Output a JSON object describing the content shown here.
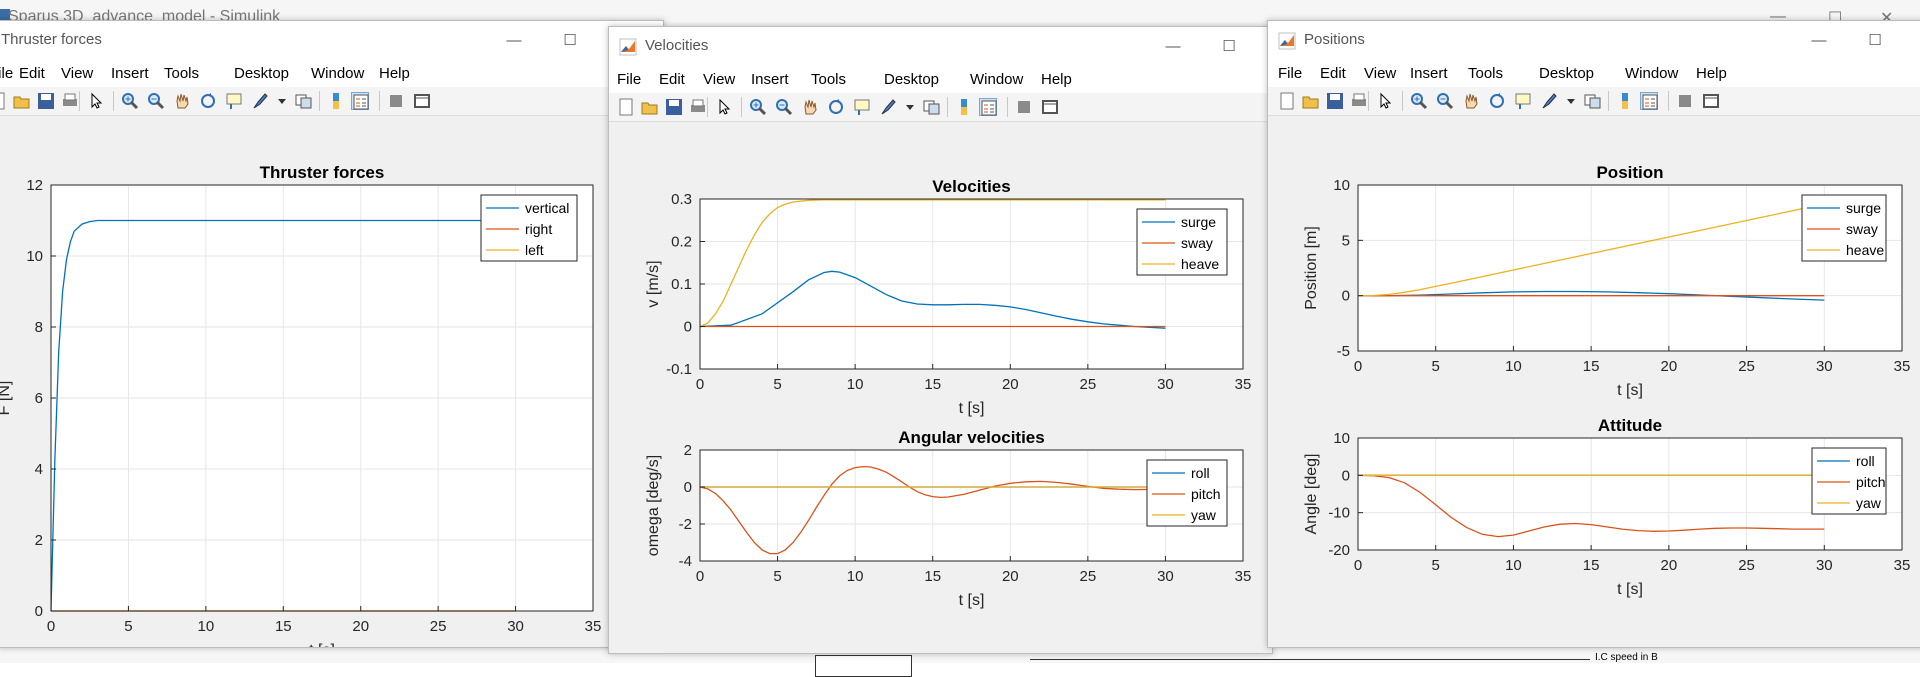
{
  "background": {
    "title": "Sparus 3D_advance_model - Simulink",
    "bottom_label": "I.C speed in B"
  },
  "menu_items": [
    "File",
    "Edit",
    "View",
    "Insert",
    "Tools",
    "Desktop",
    "Window",
    "Help"
  ],
  "toolbar_icons": [
    "new-figure-icon",
    "open-icon",
    "save-icon",
    "print-icon",
    "pointer-icon",
    "zoom-in-icon",
    "zoom-out-icon",
    "pan-icon",
    "rotate-icon",
    "data-cursor-icon",
    "brush-icon",
    "dropdown-arrow-icon",
    "link-icon",
    "colorbar-icon",
    "legend-icon",
    "hide-plot-tools-icon",
    "show-plot-tools-icon"
  ],
  "windows": {
    "thruster": {
      "title": "Thruster forces"
    },
    "velocities": {
      "title": "Velocities"
    },
    "positions": {
      "title": "Positions"
    }
  },
  "colors": {
    "blue": "#0072BD",
    "orange": "#D95319",
    "yellow": "#EDB120",
    "grid": "#e6e6e6",
    "axes": "#262626"
  },
  "chart_data": [
    {
      "id": "thruster_forces",
      "type": "line",
      "title": "Thruster forces",
      "xlabel": "t [s]",
      "ylabel": "F [N]",
      "xlim": [
        0,
        35
      ],
      "ylim": [
        0,
        12
      ],
      "xticks": [
        0,
        5,
        10,
        15,
        20,
        25,
        30,
        35
      ],
      "yticks": [
        0,
        2,
        4,
        6,
        8,
        10,
        12
      ],
      "grid": true,
      "legend_position": "top-right",
      "series": [
        {
          "name": "vertical",
          "color": "blue",
          "x": [
            0,
            0.25,
            0.5,
            0.75,
            1,
            1.25,
            1.5,
            2,
            2.5,
            3,
            4,
            5,
            10,
            30
          ],
          "y": [
            0,
            4.3,
            7.3,
            9.0,
            9.9,
            10.4,
            10.7,
            10.9,
            10.97,
            11.0,
            11.0,
            11.0,
            11.0,
            11.0
          ]
        },
        {
          "name": "right",
          "color": "orange",
          "x": [
            0,
            30
          ],
          "y": [
            0,
            0
          ]
        },
        {
          "name": "left",
          "color": "yellow",
          "x": [
            0,
            30
          ],
          "y": [
            0,
            0
          ]
        }
      ]
    },
    {
      "id": "velocities",
      "type": "line",
      "title": "Velocities",
      "xlabel": "t [s]",
      "ylabel": "v [m/s]",
      "xlim": [
        0,
        35
      ],
      "ylim": [
        -0.1,
        0.3
      ],
      "xticks": [
        0,
        5,
        10,
        15,
        20,
        25,
        30,
        35
      ],
      "yticks": [
        -0.1,
        0,
        0.1,
        0.2,
        0.3
      ],
      "ytick_labels": [
        "-0.1",
        "0",
        "0.1",
        "0.2",
        "0.3"
      ],
      "grid": true,
      "legend_position": "top-right",
      "series": [
        {
          "name": "surge",
          "color": "blue",
          "x": [
            0,
            2,
            4,
            6,
            7,
            8,
            8.5,
            9,
            10,
            11,
            12,
            13,
            14,
            15,
            16,
            17,
            18,
            19,
            20,
            21,
            22,
            23,
            24,
            25,
            26,
            27,
            28,
            29,
            30
          ],
          "y": [
            0,
            0.003,
            0.03,
            0.082,
            0.11,
            0.127,
            0.13,
            0.128,
            0.115,
            0.095,
            0.075,
            0.06,
            0.053,
            0.051,
            0.051,
            0.052,
            0.052,
            0.05,
            0.046,
            0.04,
            0.032,
            0.024,
            0.017,
            0.011,
            0.006,
            0.003,
            0.0,
            -0.002,
            -0.004
          ]
        },
        {
          "name": "sway",
          "color": "orange",
          "x": [
            0,
            30
          ],
          "y": [
            0,
            0
          ]
        },
        {
          "name": "heave",
          "color": "yellow",
          "x": [
            0,
            0.5,
            1,
            1.5,
            2,
            2.5,
            3,
            3.5,
            4,
            4.5,
            5,
            5.5,
            6,
            7,
            8,
            10,
            30
          ],
          "y": [
            0,
            0.008,
            0.03,
            0.06,
            0.1,
            0.14,
            0.18,
            0.215,
            0.245,
            0.265,
            0.28,
            0.288,
            0.293,
            0.297,
            0.298,
            0.298,
            0.298
          ]
        }
      ]
    },
    {
      "id": "angular_velocities",
      "type": "line",
      "title": "Angular velocities",
      "xlabel": "t [s]",
      "ylabel": "omega [deg/s]",
      "xlim": [
        0,
        35
      ],
      "ylim": [
        -4,
        2
      ],
      "xticks": [
        0,
        5,
        10,
        15,
        20,
        25,
        30,
        35
      ],
      "yticks": [
        -4,
        -2,
        0,
        2
      ],
      "grid": true,
      "legend_position": "top-right",
      "series": [
        {
          "name": "roll",
          "color": "blue",
          "x": [
            0,
            30
          ],
          "y": [
            0,
            0
          ]
        },
        {
          "name": "pitch",
          "color": "orange",
          "x": [
            0,
            0.5,
            1,
            1.5,
            2,
            2.5,
            3,
            3.5,
            4,
            4.5,
            5,
            5.5,
            6,
            6.5,
            7,
            7.5,
            8,
            8.5,
            9,
            9.5,
            10,
            10.5,
            11,
            11.5,
            12,
            12.5,
            13,
            13.5,
            14,
            14.5,
            15,
            15.5,
            16,
            17,
            18,
            19,
            20,
            21,
            22,
            23,
            24,
            25,
            26,
            27,
            28,
            29,
            30
          ],
          "y": [
            0,
            -0.1,
            -0.35,
            -0.75,
            -1.25,
            -1.85,
            -2.45,
            -3.0,
            -3.4,
            -3.6,
            -3.6,
            -3.4,
            -3.0,
            -2.45,
            -1.8,
            -1.1,
            -0.45,
            0.15,
            0.6,
            0.9,
            1.05,
            1.1,
            1.08,
            0.97,
            0.8,
            0.55,
            0.28,
            0.0,
            -0.25,
            -0.42,
            -0.52,
            -0.56,
            -0.54,
            -0.4,
            -0.18,
            0.05,
            0.2,
            0.28,
            0.3,
            0.25,
            0.15,
            0.03,
            -0.07,
            -0.12,
            -0.14,
            -0.13,
            -0.1
          ]
        },
        {
          "name": "yaw",
          "color": "yellow",
          "x": [
            0,
            30
          ],
          "y": [
            0,
            0
          ]
        }
      ]
    },
    {
      "id": "position",
      "type": "line",
      "title": "Position",
      "xlabel": "t [s]",
      "ylabel": "Position [m]",
      "xlim": [
        0,
        35
      ],
      "ylim": [
        -5,
        10
      ],
      "xticks": [
        0,
        5,
        10,
        15,
        20,
        25,
        30,
        35
      ],
      "yticks": [
        -5,
        0,
        5,
        10
      ],
      "grid": true,
      "legend_position": "top-right",
      "series": [
        {
          "name": "surge",
          "color": "blue",
          "x": [
            0,
            2,
            4,
            6,
            8,
            10,
            12,
            14,
            16,
            18,
            20,
            22,
            24,
            26,
            28,
            30
          ],
          "y": [
            0,
            0.0,
            0.05,
            0.15,
            0.26,
            0.34,
            0.38,
            0.38,
            0.34,
            0.27,
            0.18,
            0.06,
            -0.06,
            -0.18,
            -0.3,
            -0.4
          ]
        },
        {
          "name": "sway",
          "color": "orange",
          "x": [
            0,
            30
          ],
          "y": [
            0,
            0
          ]
        },
        {
          "name": "heave",
          "color": "yellow",
          "x": [
            0,
            1,
            2,
            3,
            4,
            5,
            6,
            8,
            10,
            15,
            20,
            25,
            30
          ],
          "y": [
            0,
            0.015,
            0.11,
            0.3,
            0.55,
            0.84,
            1.13,
            1.72,
            2.32,
            3.81,
            5.3,
            6.79,
            8.28
          ]
        }
      ]
    },
    {
      "id": "attitude",
      "type": "line",
      "title": "Attitude",
      "xlabel": "t [s]",
      "ylabel": "Angle [deg]",
      "xlim": [
        0,
        35
      ],
      "ylim": [
        -20,
        10
      ],
      "xticks": [
        0,
        5,
        10,
        15,
        20,
        25,
        30,
        35
      ],
      "yticks": [
        -20,
        -10,
        0,
        10
      ],
      "grid": true,
      "legend_position": "top-right",
      "series": [
        {
          "name": "roll",
          "color": "blue",
          "x": [
            0,
            30
          ],
          "y": [
            0,
            0
          ]
        },
        {
          "name": "pitch",
          "color": "orange",
          "x": [
            0,
            1,
            2,
            3,
            4,
            5,
            6,
            7,
            8,
            9,
            10,
            11,
            12,
            13,
            14,
            15,
            16,
            17,
            18,
            19,
            20,
            21,
            22,
            23,
            24,
            25,
            26,
            27,
            28,
            29,
            30
          ],
          "y": [
            0,
            -0.1,
            -0.6,
            -2.0,
            -4.6,
            -7.9,
            -11.3,
            -14.0,
            -15.8,
            -16.4,
            -16.0,
            -14.9,
            -13.8,
            -13.1,
            -12.9,
            -13.2,
            -13.8,
            -14.4,
            -14.8,
            -15.0,
            -14.9,
            -14.7,
            -14.4,
            -14.2,
            -14.1,
            -14.1,
            -14.2,
            -14.3,
            -14.4,
            -14.4,
            -14.4
          ]
        },
        {
          "name": "yaw",
          "color": "yellow",
          "x": [
            0,
            30
          ],
          "y": [
            0,
            0
          ]
        }
      ]
    }
  ]
}
